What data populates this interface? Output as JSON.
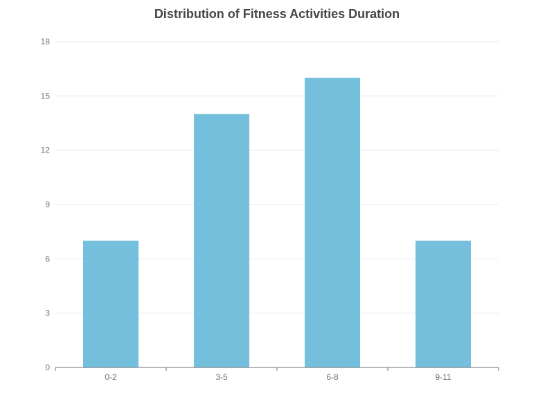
{
  "chart_data": {
    "type": "bar",
    "title": "Distribution of Fitness Activities Duration",
    "xlabel": "",
    "ylabel": "",
    "categories": [
      "0-2",
      "3-5",
      "6-8",
      "9-11"
    ],
    "values": [
      7,
      14,
      16,
      7
    ],
    "ylim": [
      0,
      18
    ],
    "yticks": [
      0,
      3,
      6,
      9,
      12,
      15,
      18
    ],
    "grid": true,
    "legend": "none",
    "colors": {
      "bar": "#74bfdc",
      "grid": "#e0e6f1",
      "axis": "#6e7079",
      "title": "#464646"
    }
  }
}
